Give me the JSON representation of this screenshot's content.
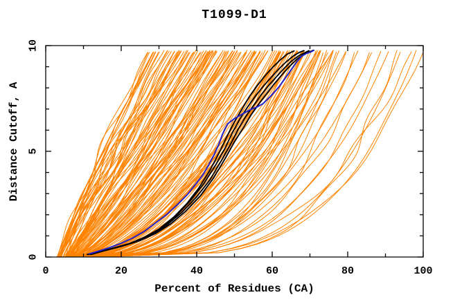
{
  "colors": {
    "background": "#ffffff",
    "axis": "#000000",
    "ensemble_orange": "#ff8300",
    "highlight_blue": "#2323cc",
    "highlight_black": "#000000"
  },
  "chart_data": {
    "type": "line",
    "title": "T1099-D1",
    "xlabel": "Percent of Residues (CA)",
    "ylabel": "Distance Cutoff, A",
    "xlim": [
      0,
      100
    ],
    "ylim": [
      0,
      10
    ],
    "x_major_ticks": [
      0,
      20,
      40,
      60,
      80,
      100
    ],
    "x_minor_ticks": [
      10,
      30,
      50,
      70,
      90
    ],
    "y_major_ticks": [
      0,
      5,
      10
    ],
    "y_minor_ticks": [
      1,
      2,
      3,
      4,
      6,
      7,
      8,
      9
    ],
    "grid": false,
    "legend": "none",
    "series": [
      {
        "name": "highlighted-model-blue",
        "color": "#2323cc",
        "width": 2,
        "points": [
          [
            11.5,
            0.15
          ],
          [
            14,
            0.28
          ],
          [
            17,
            0.45
          ],
          [
            20,
            0.65
          ],
          [
            23,
            0.9
          ],
          [
            26,
            1.2
          ],
          [
            29,
            1.6
          ],
          [
            32,
            2.0
          ],
          [
            35,
            2.5
          ],
          [
            37.5,
            2.95
          ],
          [
            39.5,
            3.4
          ],
          [
            41.5,
            3.85
          ],
          [
            43,
            4.3
          ],
          [
            44.5,
            4.8
          ],
          [
            45.8,
            5.3
          ],
          [
            46.8,
            5.8
          ],
          [
            47.6,
            6.1
          ],
          [
            48.2,
            6.3
          ],
          [
            50,
            6.55
          ],
          [
            52,
            6.75
          ],
          [
            54,
            6.95
          ],
          [
            56,
            7.1
          ],
          [
            57.5,
            7.25
          ],
          [
            58.7,
            7.45
          ],
          [
            59.8,
            7.65
          ],
          [
            60.8,
            7.85
          ],
          [
            61.8,
            8.05
          ],
          [
            62.8,
            8.3
          ],
          [
            63.8,
            8.55
          ],
          [
            64.8,
            8.8
          ],
          [
            65.8,
            9.05
          ],
          [
            66.8,
            9.3
          ],
          [
            67.8,
            9.5
          ],
          [
            69,
            9.62
          ],
          [
            70.2,
            9.7
          ],
          [
            71,
            9.77
          ]
        ]
      },
      {
        "name": "highlighted-model-black-1",
        "color": "#000000",
        "width": 1.9,
        "points": [
          [
            11,
            0.12
          ],
          [
            14,
            0.25
          ],
          [
            18,
            0.42
          ],
          [
            22,
            0.62
          ],
          [
            26,
            0.92
          ],
          [
            30,
            1.32
          ],
          [
            34,
            1.9
          ],
          [
            37.5,
            2.55
          ],
          [
            40.5,
            3.25
          ],
          [
            43.5,
            4.1
          ],
          [
            46,
            4.95
          ],
          [
            48,
            5.7
          ],
          [
            50,
            6.4
          ],
          [
            52,
            7.0
          ],
          [
            54,
            7.6
          ],
          [
            56,
            8.1
          ],
          [
            58,
            8.55
          ],
          [
            60,
            8.95
          ],
          [
            62,
            9.3
          ],
          [
            64,
            9.6
          ],
          [
            65.8,
            9.75
          ]
        ]
      },
      {
        "name": "highlighted-model-black-2",
        "color": "#000000",
        "width": 1.9,
        "points": [
          [
            11.3,
            0.12
          ],
          [
            14.8,
            0.27
          ],
          [
            18.8,
            0.45
          ],
          [
            22.8,
            0.66
          ],
          [
            26.8,
            0.97
          ],
          [
            30.8,
            1.4
          ],
          [
            34.8,
            2.0
          ],
          [
            38.5,
            2.7
          ],
          [
            42,
            3.5
          ],
          [
            45,
            4.35
          ],
          [
            47.5,
            5.15
          ],
          [
            49.5,
            5.9
          ],
          [
            51.5,
            6.55
          ],
          [
            53.5,
            7.1
          ],
          [
            55.5,
            7.6
          ],
          [
            57.5,
            8.05
          ],
          [
            59.5,
            8.45
          ],
          [
            61.5,
            8.85
          ],
          [
            63.5,
            9.2
          ],
          [
            65.5,
            9.5
          ],
          [
            67.2,
            9.68
          ],
          [
            68.4,
            9.76
          ]
        ]
      },
      {
        "name": "highlighted-model-black-3",
        "color": "#000000",
        "width": 1.9,
        "points": [
          [
            11.6,
            0.12
          ],
          [
            15.5,
            0.3
          ],
          [
            20,
            0.5
          ],
          [
            24,
            0.72
          ],
          [
            28,
            1.05
          ],
          [
            32,
            1.5
          ],
          [
            36,
            2.1
          ],
          [
            40,
            2.85
          ],
          [
            43.5,
            3.65
          ],
          [
            46.5,
            4.55
          ],
          [
            49,
            5.35
          ],
          [
            51,
            6.05
          ],
          [
            53,
            6.65
          ],
          [
            55,
            7.15
          ],
          [
            57,
            7.65
          ],
          [
            59,
            8.1
          ],
          [
            61,
            8.5
          ],
          [
            63,
            8.9
          ],
          [
            65,
            9.25
          ],
          [
            67,
            9.52
          ],
          [
            68.8,
            9.68
          ],
          [
            69.7,
            9.76
          ]
        ]
      },
      {
        "name": "highlighted-model-black-4",
        "color": "#000000",
        "width": 1.9,
        "points": [
          [
            12,
            0.12
          ],
          [
            16,
            0.32
          ],
          [
            20.5,
            0.55
          ],
          [
            25,
            0.78
          ],
          [
            29,
            1.1
          ],
          [
            33,
            1.55
          ],
          [
            37,
            2.15
          ],
          [
            41,
            2.9
          ],
          [
            44.5,
            3.75
          ],
          [
            47.5,
            4.65
          ],
          [
            50,
            5.45
          ],
          [
            52.5,
            6.15
          ],
          [
            54.5,
            6.75
          ],
          [
            56.5,
            7.25
          ],
          [
            58.5,
            7.72
          ],
          [
            60.5,
            8.18
          ],
          [
            62.5,
            8.6
          ],
          [
            64.5,
            9.0
          ],
          [
            66.5,
            9.35
          ],
          [
            68.5,
            9.6
          ],
          [
            70,
            9.72
          ],
          [
            71,
            9.78
          ]
        ]
      }
    ],
    "ensemble": {
      "name": "server-models-orange",
      "color": "#ff8300",
      "width": 1,
      "count": 155,
      "seed": 13,
      "y_cap": 9.72,
      "main_fraction": 0.93,
      "top_x_main_range": [
        28,
        78
      ],
      "top_x_tail_range": [
        80,
        100
      ],
      "bottom_x_range": [
        4,
        13
      ],
      "shape_q_start": 1.15,
      "shape_q_slope": 0.87,
      "wiggle_amp_max": 2.4
    }
  }
}
